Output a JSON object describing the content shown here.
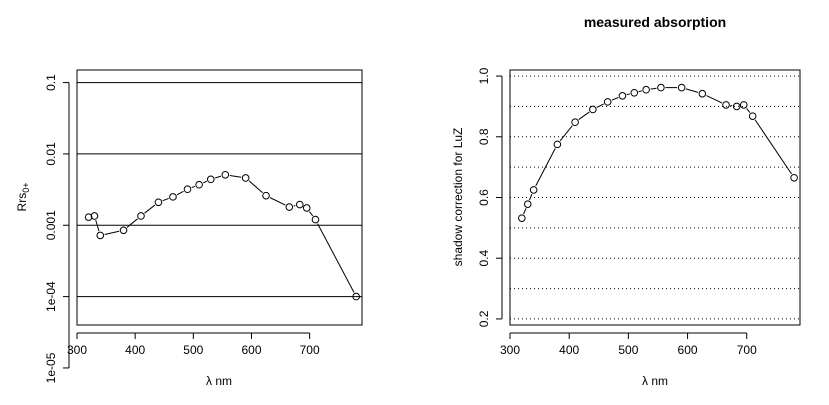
{
  "chart_data": [
    {
      "type": "scatter",
      "title": "",
      "xlabel": "λ nm",
      "ylabel_main": "Rrs",
      "ylabel_sub": "0+",
      "log_y": true,
      "grid": "solid horizontal lines at decades",
      "xlim": [
        300,
        790
      ],
      "ylim": [
        4e-05,
        0.15
      ],
      "x_ticks": [
        300,
        400,
        500,
        600,
        700
      ],
      "x_tick_labels": [
        "300",
        "400",
        "500",
        "600",
        "700"
      ],
      "y_ticks": [
        1e-05,
        0.0001,
        0.001,
        0.01,
        0.1
      ],
      "y_tick_labels": [
        "1e-05",
        "1e-04",
        "0.001",
        "0.01",
        "0.1"
      ],
      "points": [
        {
          "x": 320,
          "y": 0.0013
        },
        {
          "x": 330,
          "y": 0.00135
        },
        {
          "x": 340,
          "y": 0.00072
        },
        {
          "x": 380,
          "y": 0.00085
        },
        {
          "x": 410,
          "y": 0.00135
        },
        {
          "x": 440,
          "y": 0.0021
        },
        {
          "x": 465,
          "y": 0.0025
        },
        {
          "x": 490,
          "y": 0.0032
        },
        {
          "x": 510,
          "y": 0.0037
        },
        {
          "x": 530,
          "y": 0.0044
        },
        {
          "x": 555,
          "y": 0.0051
        },
        {
          "x": 590,
          "y": 0.0046
        },
        {
          "x": 625,
          "y": 0.0026
        },
        {
          "x": 665,
          "y": 0.0018
        },
        {
          "x": 683,
          "y": 0.00195
        },
        {
          "x": 695,
          "y": 0.00175
        },
        {
          "x": 710,
          "y": 0.0012
        },
        {
          "x": 780,
          "y": 0.0001
        }
      ]
    },
    {
      "type": "scatter",
      "title": "measured absorption",
      "xlabel": "λ nm",
      "ylabel": "shadow correction for LuZ",
      "log_y": false,
      "grid": "dotted horizontal lines every 0.1",
      "xlim": [
        300,
        790
      ],
      "ylim": [
        0.18,
        1.02
      ],
      "x_ticks": [
        300,
        400,
        500,
        600,
        700
      ],
      "x_tick_labels": [
        "300",
        "400",
        "500",
        "600",
        "700"
      ],
      "y_ticks": [
        0.2,
        0.4,
        0.6,
        0.8,
        1.0
      ],
      "y_tick_labels": [
        "0.2",
        "0.4",
        "0.6",
        "0.8",
        "1.0"
      ],
      "gridlines": [
        0.2,
        0.3,
        0.4,
        0.5,
        0.6,
        0.7,
        0.8,
        0.9,
        1.0
      ],
      "points": [
        {
          "x": 320,
          "y": 0.532
        },
        {
          "x": 330,
          "y": 0.578
        },
        {
          "x": 340,
          "y": 0.625
        },
        {
          "x": 380,
          "y": 0.775
        },
        {
          "x": 410,
          "y": 0.848
        },
        {
          "x": 440,
          "y": 0.89
        },
        {
          "x": 465,
          "y": 0.915
        },
        {
          "x": 490,
          "y": 0.935
        },
        {
          "x": 510,
          "y": 0.945
        },
        {
          "x": 530,
          "y": 0.955
        },
        {
          "x": 555,
          "y": 0.962
        },
        {
          "x": 590,
          "y": 0.962
        },
        {
          "x": 625,
          "y": 0.942
        },
        {
          "x": 665,
          "y": 0.905
        },
        {
          "x": 683,
          "y": 0.9
        },
        {
          "x": 695,
          "y": 0.905
        },
        {
          "x": 710,
          "y": 0.868
        },
        {
          "x": 780,
          "y": 0.665
        }
      ]
    }
  ]
}
